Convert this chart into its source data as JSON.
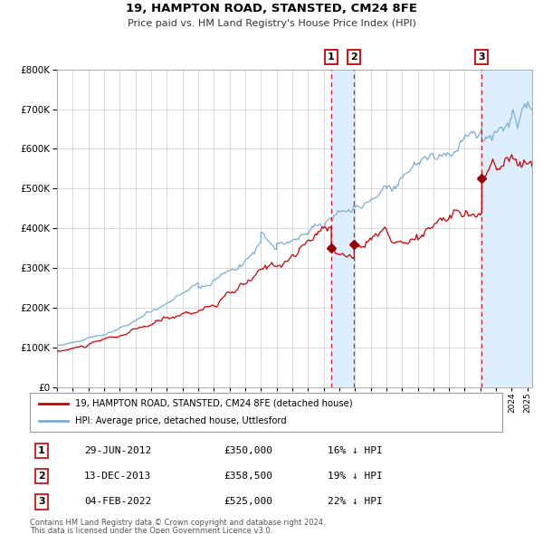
{
  "title": "19, HAMPTON ROAD, STANSTED, CM24 8FE",
  "subtitle": "Price paid vs. HM Land Registry's House Price Index (HPI)",
  "red_label": "19, HAMPTON ROAD, STANSTED, CM24 8FE (detached house)",
  "blue_label": "HPI: Average price, detached house, Uttlesford",
  "sale_events": [
    {
      "label": "1",
      "date": "29-JUN-2012",
      "price": 350000,
      "note": "16% ↓ HPI",
      "year": 2012.49
    },
    {
      "label": "2",
      "date": "13-DEC-2013",
      "price": 358500,
      "note": "19% ↓ HPI",
      "year": 2013.95
    },
    {
      "label": "3",
      "date": "04-FEB-2022",
      "price": 525000,
      "note": "22% ↓ HPI",
      "year": 2022.09
    }
  ],
  "footer_line1": "Contains HM Land Registry data © Crown copyright and database right 2024.",
  "footer_line2": "This data is licensed under the Open Government Licence v3.0.",
  "ylim": [
    0,
    800000
  ],
  "xlim_start": 1995.0,
  "xlim_end": 2025.3,
  "background_color": "#ffffff",
  "grid_color": "#cccccc",
  "red_color": "#cc0000",
  "blue_color": "#7aaed4",
  "shade_color": "#ddeeff",
  "sale_dot_color": "#990000",
  "event_box_color": "#cc0000",
  "hpi_seed": 42,
  "red_seed": 77,
  "hpi_noise": 0.008,
  "red_noise": 0.011
}
